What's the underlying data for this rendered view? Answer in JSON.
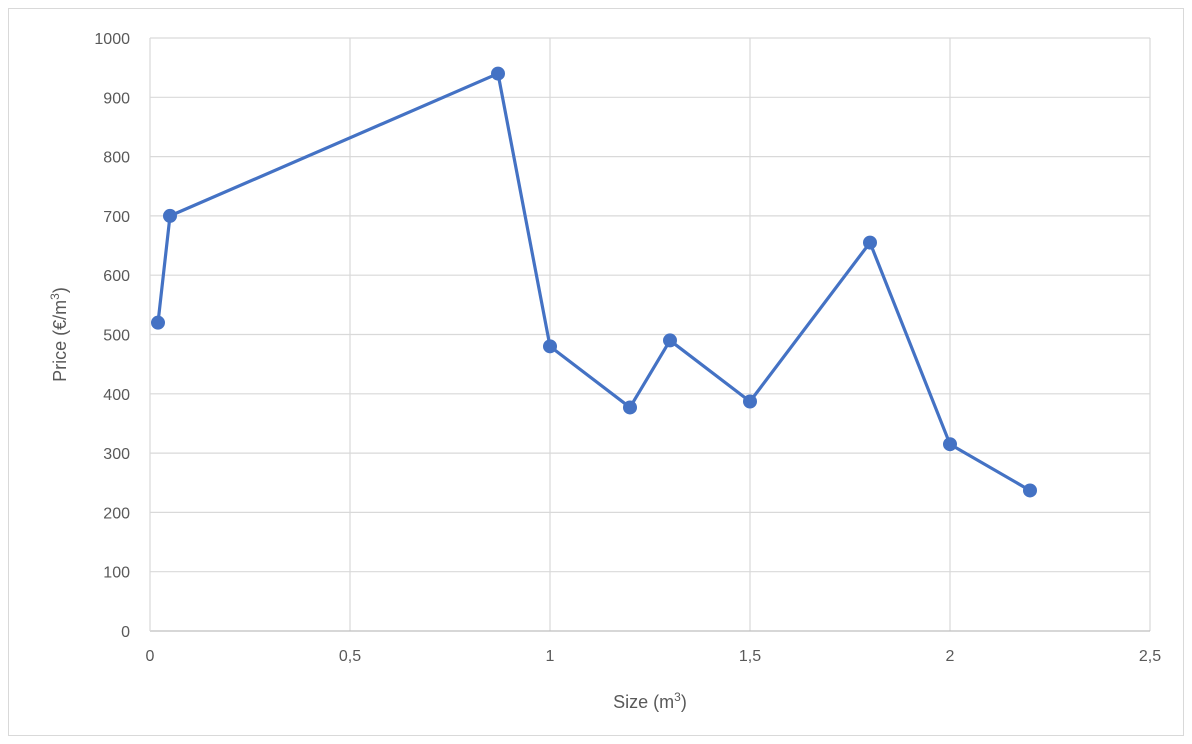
{
  "chart_data": {
    "type": "line",
    "title": "",
    "xlabel": "Size (m³)",
    "xlabel_base": "Size (m",
    "xlabel_sup": "3",
    "xlabel_close": ")",
    "ylabel": "Price (€/m³)",
    "ylabel_base": "Price (€/m",
    "ylabel_sup": "3",
    "ylabel_close": ")",
    "xlim": [
      0,
      2.5
    ],
    "ylim": [
      0,
      1000
    ],
    "x_ticks": [
      "0",
      "0,5",
      "1",
      "1,5",
      "2",
      "2,5"
    ],
    "x_tick_values": [
      0,
      0.5,
      1,
      1.5,
      2,
      2.5
    ],
    "y_ticks": [
      "0",
      "100",
      "200",
      "300",
      "400",
      "500",
      "600",
      "700",
      "800",
      "900",
      "1000"
    ],
    "y_tick_values": [
      0,
      100,
      200,
      300,
      400,
      500,
      600,
      700,
      800,
      900,
      1000
    ],
    "grid": true,
    "legend": "none",
    "series": [
      {
        "color": "#4472C4",
        "markers": true,
        "points": [
          {
            "x": 0.02,
            "y": 520
          },
          {
            "x": 0.05,
            "y": 700
          },
          {
            "x": 0.87,
            "y": 940
          },
          {
            "x": 1.0,
            "y": 480
          },
          {
            "x": 1.2,
            "y": 377
          },
          {
            "x": 1.3,
            "y": 490
          },
          {
            "x": 1.5,
            "y": 387
          },
          {
            "x": 1.8,
            "y": 655
          },
          {
            "x": 2.0,
            "y": 315
          },
          {
            "x": 2.2,
            "y": 237
          }
        ]
      }
    ]
  }
}
